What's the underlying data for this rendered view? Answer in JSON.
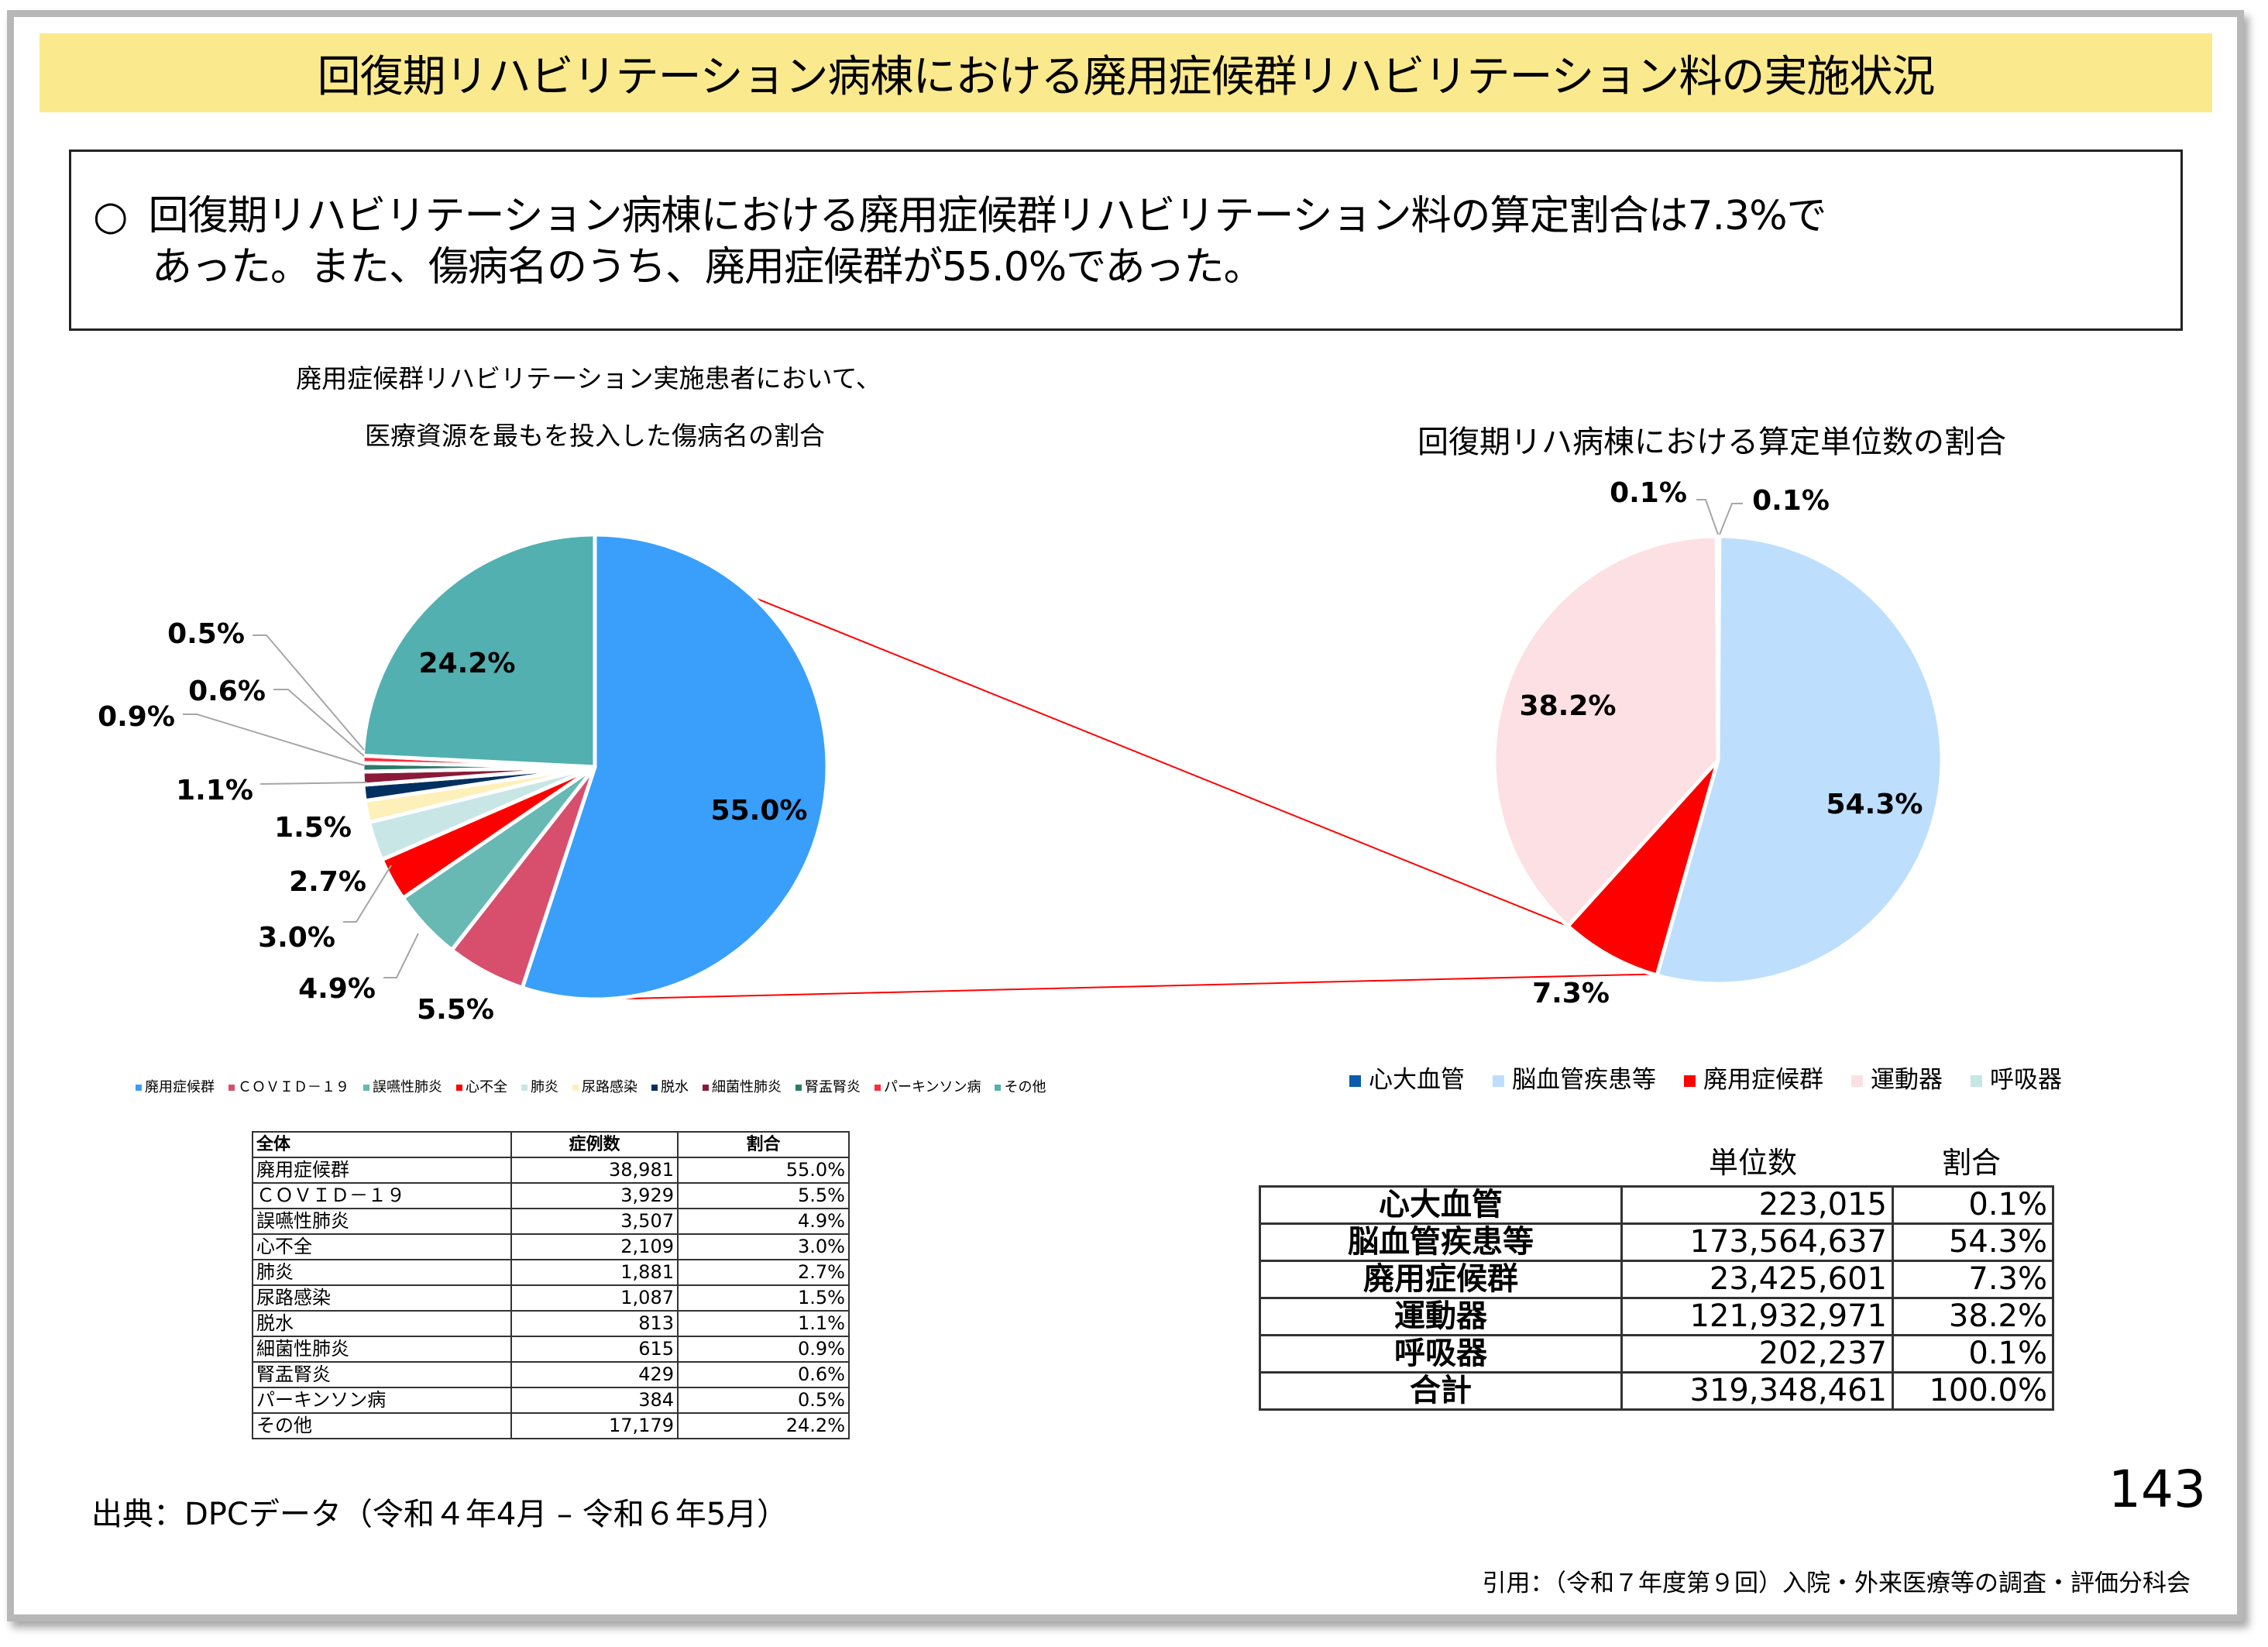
{
  "title": "回復期リハビリテーション病棟における廃用症候群リハビリテーション料の実施状況",
  "summary": {
    "bullet": "○",
    "line1": "回復期リハビリテーション病棟における廃用症候群リハビリテーション料の算定割合は7.3%で",
    "line2": "あった。また、傷病名のうち、廃用症候群が55.0%であった。"
  },
  "left_chart": {
    "subtitle_line1": "廃用症候群リハビリテーション実施患者において、",
    "subtitle_line2": "医療資源を最もを投入した傷病名の割合",
    "table": {
      "headers": [
        "全体",
        "症例数",
        "割合"
      ],
      "rows": [
        [
          "廃用症候群",
          "38,981",
          "55.0%"
        ],
        [
          "ＣＯＶＩＤ－１９",
          "3,929",
          "5.5%"
        ],
        [
          "誤嚥性肺炎",
          "3,507",
          "4.9%"
        ],
        [
          "心不全",
          "2,109",
          "3.0%"
        ],
        [
          "肺炎",
          "1,881",
          "2.7%"
        ],
        [
          "尿路感染",
          "1,087",
          "1.5%"
        ],
        [
          "脱水",
          "813",
          "1.1%"
        ],
        [
          "細菌性肺炎",
          "615",
          "0.9%"
        ],
        [
          "腎盂腎炎",
          "429",
          "0.6%"
        ],
        [
          "パーキンソン病",
          "384",
          "0.5%"
        ],
        [
          "その他",
          "17,179",
          "24.2%"
        ]
      ]
    }
  },
  "right_chart": {
    "title": "回復期リハ病棟における算定単位数の割合",
    "table": {
      "headers": [
        "",
        "単位数",
        "割合"
      ],
      "rows": [
        [
          "心大血管",
          "223,015",
          "0.1%"
        ],
        [
          "脳血管疾患等",
          "173,564,637",
          "54.3%"
        ],
        [
          "廃用症候群",
          "23,425,601",
          "7.3%"
        ],
        [
          "運動器",
          "121,932,971",
          "38.2%"
        ],
        [
          "呼吸器",
          "202,237",
          "0.1%"
        ],
        [
          "合計",
          "319,348,461",
          "100.0%"
        ]
      ]
    }
  },
  "chart_data": [
    {
      "type": "pie",
      "title": "廃用症候群リハビリテーション実施患者において、医療資源を最もを投入した傷病名の割合",
      "categories": [
        "廃用症候群",
        "ＣＯＶＩＤ－１９",
        "誤嚥性肺炎",
        "心不全",
        "肺炎",
        "尿路感染",
        "脱水",
        "細菌性肺炎",
        "腎盂腎炎",
        "パーキンソン病",
        "その他"
      ],
      "values": [
        55.0,
        5.5,
        4.9,
        3.0,
        2.7,
        1.5,
        1.1,
        0.9,
        0.6,
        0.5,
        24.2
      ],
      "labels": [
        "55.0%",
        "5.5%",
        "4.9%",
        "3.0%",
        "2.7%",
        "1.5%",
        "1.1%",
        "0.9%",
        "0.6%",
        "0.5%",
        "24.2%"
      ],
      "colors": [
        "#3a9ffb",
        "#d84f6d",
        "#68b8b4",
        "#ff0000",
        "#c9e6e6",
        "#fdf0b8",
        "#00305f",
        "#8b1a38",
        "#2c7a6a",
        "#ff2a3d",
        "#52b0b0"
      ],
      "start": "12 o'clock, clockwise",
      "legend": "bottom"
    },
    {
      "type": "pie",
      "title": "回復期リハ病棟における算定単位数の割合",
      "categories": [
        "心大血管",
        "脳血管疾患等",
        "廃用症候群",
        "運動器",
        "呼吸器"
      ],
      "values": [
        0.1,
        54.3,
        7.3,
        38.2,
        0.1
      ],
      "labels": [
        "0.1%",
        "54.3%",
        "7.3%",
        "38.2%",
        "0.1%"
      ],
      "colors": [
        "#0b5cad",
        "#bddffd",
        "#ff0000",
        "#fde0e3",
        "#c7e6e6"
      ],
      "start": "12 o'clock, clockwise",
      "legend": "bottom"
    }
  ],
  "connector_color": "#ff0000",
  "page_number": "143",
  "source": "出典：DPCデータ（令和４年4月 – 令和６年5月）",
  "citation": "引用：（令和７年度第９回）入院・外来医療等の調査・評価分科会"
}
